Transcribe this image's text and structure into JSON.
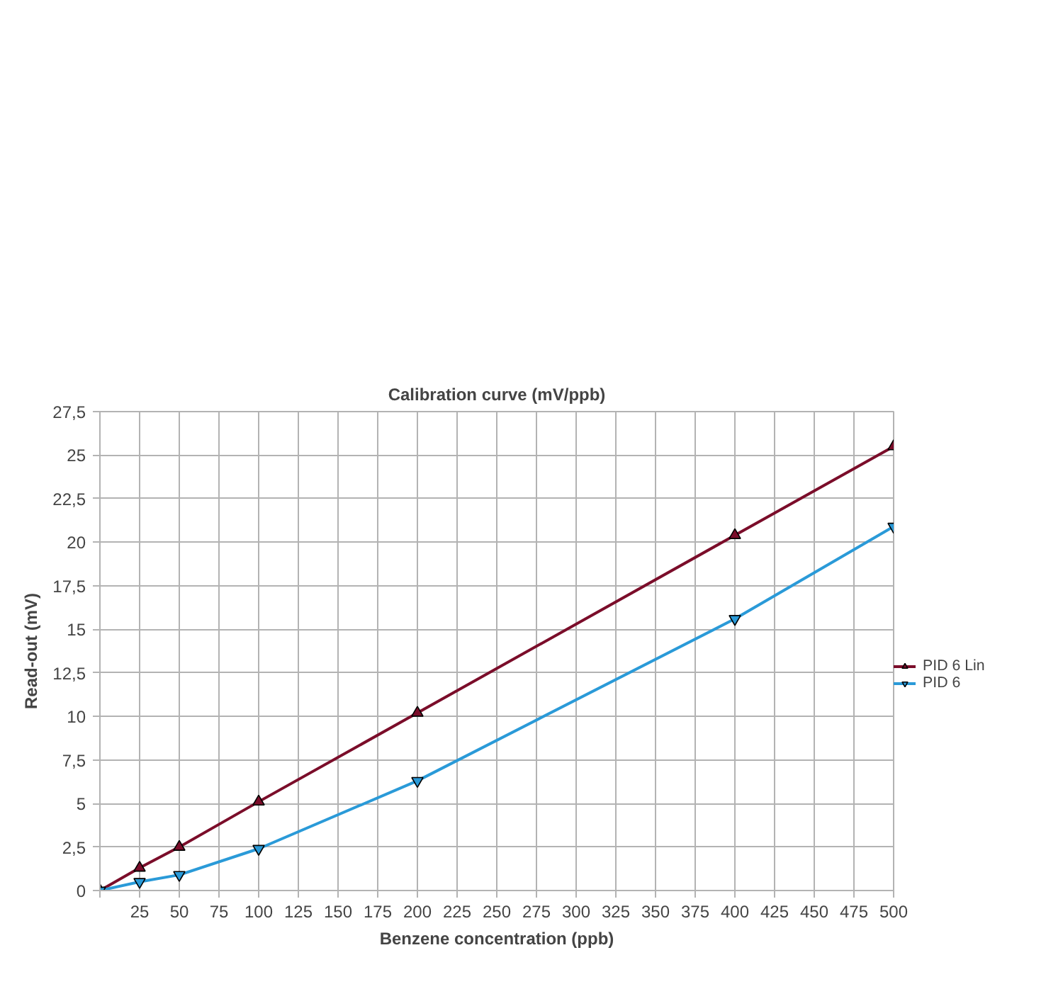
{
  "chart_data": {
    "type": "line",
    "title": "Calibration curve (mV/ppb)",
    "xlabel": "Benzene concentration (ppb)",
    "ylabel": "Read-out (mV)",
    "x": [
      0,
      25,
      50,
      100,
      200,
      400,
      500
    ],
    "series": [
      {
        "name": "PID 6 Lin",
        "color": "#7b0d2a",
        "marker": "triangle",
        "values": [
          0,
          1.3,
          2.5,
          5.1,
          10.2,
          20.4,
          25.5
        ]
      },
      {
        "name": "PID 6",
        "color": "#2a9ad8",
        "marker": "triangle_down",
        "values": [
          0,
          0.5,
          0.9,
          2.4,
          6.3,
          15.6,
          20.9
        ]
      }
    ],
    "xlim": [
      0,
      500
    ],
    "ylim": [
      0,
      27.5
    ],
    "xticks": [
      {
        "value": 0,
        "label": null
      },
      25,
      50,
      75,
      100,
      125,
      150,
      175,
      200,
      225,
      250,
      275,
      300,
      325,
      350,
      375,
      400,
      425,
      450,
      475,
      500
    ],
    "yticks": [
      0,
      {
        "value": 2.5,
        "label": "2,5"
      },
      5,
      {
        "value": 7.5,
        "label": "7,5"
      },
      10,
      {
        "value": 12.5,
        "label": "12,5"
      },
      15,
      {
        "value": 17.5,
        "label": "17,5"
      },
      20,
      {
        "value": 22.5,
        "label": "22,5"
      },
      25,
      {
        "value": 27.5,
        "label": "27,5"
      }
    ],
    "grid": true,
    "legend": "right",
    "line_style": "solid"
  }
}
